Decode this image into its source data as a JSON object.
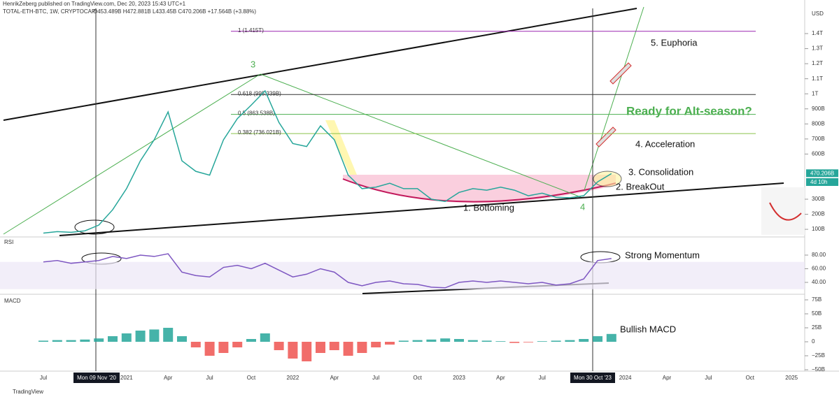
{
  "header": {
    "publisher": "HenrikZeberg published on TradingView.com, Dec 20, 2023 15:43 UTC+1",
    "symbol": "TOTAL-ETH-BTC, 1W, CRYPTOCAP",
    "ohlc": "O453.489B H472.881B L433.45B C470.206B +17.564B (+3.88%)",
    "currency": "USD",
    "crosshair_labels": [
      "Mon 09 Nov '20",
      "Mon 30 Oct '23"
    ],
    "countdown": "4d 10h",
    "brand": "TradingView"
  },
  "chart_data": [
    {
      "type": "line",
      "title": "TOTAL-ETH-BTC",
      "color": "#26a69a",
      "categories": [
        "Jul",
        null,
        null,
        null,
        null,
        null,
        "2021",
        null,
        null,
        "Apr",
        null,
        null,
        "Jul",
        null,
        null,
        "Oct",
        null,
        null,
        "2022",
        null,
        null,
        "Apr",
        null,
        null,
        "Jul",
        null,
        null,
        "Oct",
        null,
        null,
        "2023",
        null,
        null,
        "Apr",
        null,
        null,
        "Jul",
        null,
        null,
        null,
        null,
        null,
        "2024",
        null,
        null,
        "Apr",
        null,
        null,
        "Jul",
        null,
        null,
        "Oct",
        null,
        null,
        "2025"
      ],
      "values": [
        75,
        85,
        80,
        90,
        128,
        230,
        370,
        555,
        695,
        880,
        555,
        485,
        460,
        695,
        835,
        925,
        1020,
        810,
        670,
        650,
        787,
        695,
        460,
        370,
        380,
        406,
        370,
        370,
        300,
        285,
        345,
        370,
        360,
        380,
        360,
        323,
        340,
        313,
        310,
        323,
        415,
        470,
        null,
        null,
        null,
        null,
        null,
        null,
        null,
        null,
        null,
        null,
        null,
        null,
        null
      ],
      "last_value": {
        "value": 470.206,
        "label": "470.206B"
      },
      "ylim": [
        54,
        1623
      ],
      "yticks": [
        {
          "value": 100,
          "label": "100B"
        },
        {
          "value": 200,
          "label": "200B"
        },
        {
          "value": 300,
          "label": "300B"
        },
        {
          "value": 600,
          "label": "600B"
        },
        {
          "value": 700,
          "label": "700B"
        },
        {
          "value": 800,
          "label": "800B"
        },
        {
          "value": 900,
          "label": "900B"
        },
        {
          "value": 1000,
          "label": "1T"
        },
        {
          "value": 1100,
          "label": "1.1T"
        },
        {
          "value": 1200,
          "label": "1.2T"
        },
        {
          "value": 1300,
          "label": "1.3T"
        },
        {
          "value": 1400,
          "label": "1.4T"
        }
      ],
      "fib_levels": [
        {
          "value": 1415,
          "label": "1 (1.415T)",
          "color": "#9c27b0"
        },
        {
          "value": 995.339,
          "label": "0.618 (995.339B)",
          "color": "#333333"
        },
        {
          "value": 863.538,
          "label": "0.5 (863.538B)",
          "color": "#4caf50"
        },
        {
          "value": 736.021,
          "label": "0.382 (736.021B)",
          "color": "#8bc34a"
        }
      ],
      "annotations": [
        "5. Euphoria",
        "4. Acceleration",
        "3. Consolidation",
        "2. BreakOut",
        "1. Bottoming",
        "Ready for Alt-season?",
        "3",
        "4"
      ]
    },
    {
      "type": "line",
      "title": "RSI",
      "color": "#7e57c2",
      "values": [
        70,
        72,
        68,
        70,
        72,
        78,
        75,
        80,
        78,
        82,
        55,
        50,
        48,
        62,
        65,
        60,
        68,
        58,
        48,
        52,
        60,
        55,
        40,
        35,
        40,
        42,
        38,
        37,
        33,
        32,
        40,
        42,
        40,
        42,
        40,
        38,
        40,
        36,
        38,
        45,
        72,
        75,
        null,
        null,
        null,
        null,
        null,
        null,
        null,
        null,
        null,
        null,
        null,
        null,
        null
      ],
      "ylim": [
        23.6,
        105.6
      ],
      "yticks": [
        {
          "value": 40,
          "label": "40.00"
        },
        {
          "value": 60,
          "label": "60.00"
        },
        {
          "value": 80,
          "label": "80.00"
        }
      ],
      "annotations": [
        "Strong Momentum"
      ]
    },
    {
      "type": "bar",
      "title": "MACD",
      "colors": {
        "positive": "#26a69a",
        "negative": "#ef5350"
      },
      "values": [
        2,
        3,
        3,
        4,
        6,
        10,
        15,
        20,
        22,
        25,
        10,
        -10,
        -25,
        -20,
        -10,
        5,
        15,
        -15,
        -30,
        -35,
        -20,
        -15,
        -25,
        -20,
        -10,
        -5,
        2,
        3,
        4,
        6,
        5,
        3,
        2,
        1,
        -2,
        -1,
        1,
        2,
        3,
        5,
        10,
        14,
        null,
        null,
        null,
        null,
        null,
        null,
        null,
        null,
        null,
        null,
        null,
        null,
        null
      ],
      "ylim": [
        -51.25,
        83.75
      ],
      "yticks": [
        {
          "value": -50,
          "label": "−50B"
        },
        {
          "value": -25,
          "label": "−25B"
        },
        0,
        {
          "value": 25,
          "label": "25B"
        },
        {
          "value": 50,
          "label": "50B"
        },
        {
          "value": 75,
          "label": "75B"
        }
      ],
      "annotations": [
        "Bullish MACD"
      ]
    }
  ]
}
